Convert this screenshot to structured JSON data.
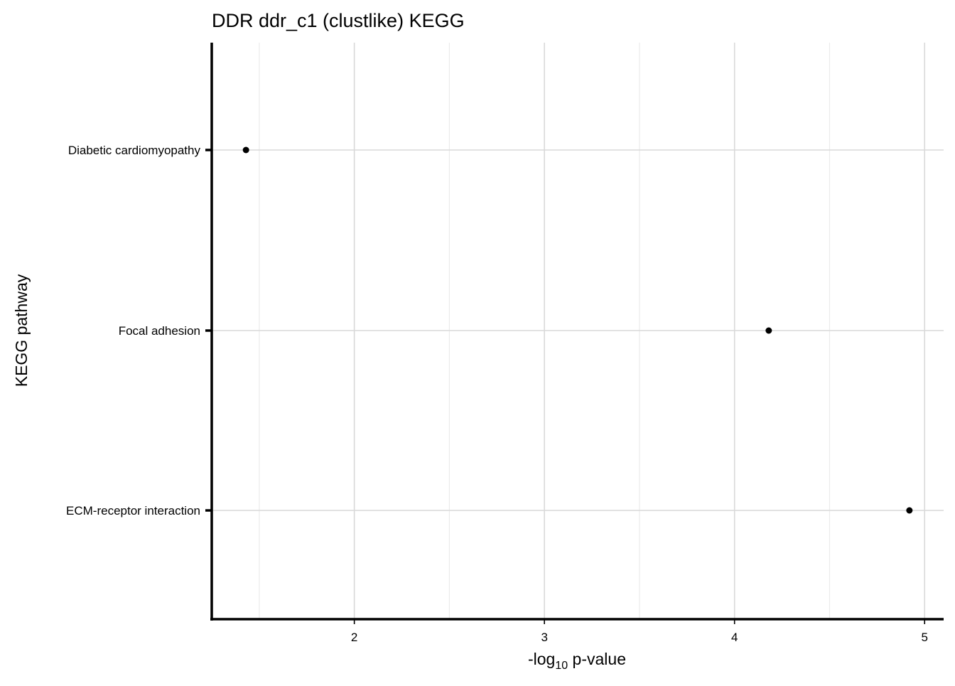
{
  "chart_data": {
    "type": "scatter",
    "title": "DDR ddr_c1 (clustlike) KEGG",
    "xlabel_main": "-log",
    "xlabel_sub": "10",
    "xlabel_rest": " p-value",
    "ylabel": "KEGG pathway",
    "categories": [
      "Diabetic cardiomyopathy",
      "Focal adhesion",
      "ECM-receptor interaction"
    ],
    "points": [
      {
        "pathway": "Diabetic cardiomyopathy",
        "value": 1.43
      },
      {
        "pathway": "Focal adhesion",
        "value": 4.18
      },
      {
        "pathway": "ECM-receptor interaction",
        "value": 4.92
      }
    ],
    "x_ticks": [
      2,
      3,
      4,
      5
    ],
    "xlim": [
      1.25,
      5.1
    ],
    "grid": true,
    "point_color": "#000000",
    "grid_color": "#d9d9d9"
  }
}
